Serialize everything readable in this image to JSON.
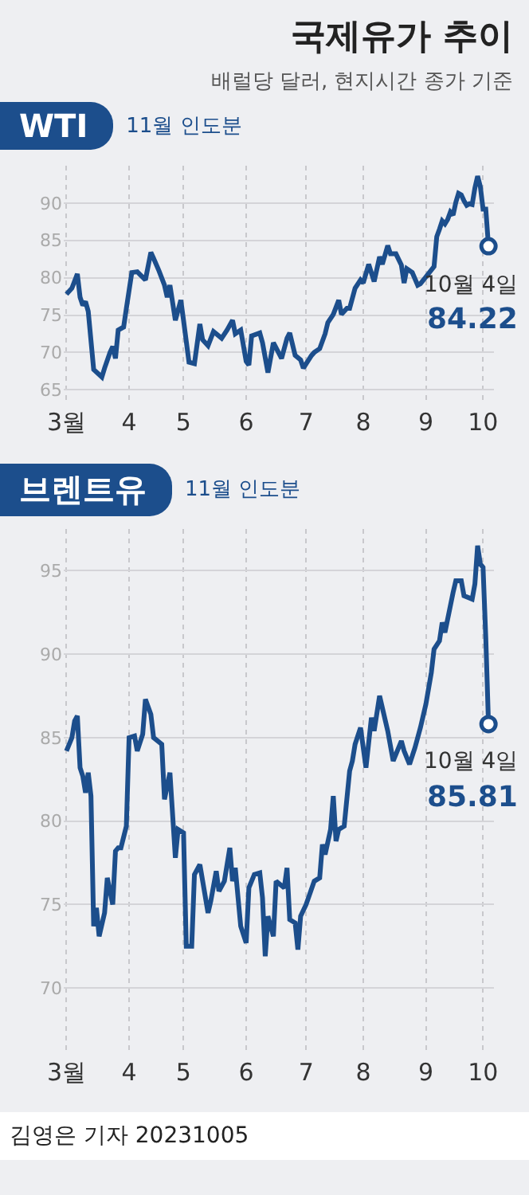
{
  "chart_data": [
    {
      "type": "line",
      "title": "국제유가 추이",
      "subtitle": "배럴당 달러, 현지시간 종가 기준",
      "x": [
        "2023-03-01",
        "2023-03-03",
        "2023-03-07",
        "2023-03-08",
        "2023-03-09",
        "2023-03-10",
        "2023-03-13",
        "2023-03-15",
        "2023-03-20",
        "2023-03-21",
        "2023-03-23",
        "2023-03-24",
        "2023-03-27",
        "2023-03-28",
        "2023-03-30",
        "2023-03-31",
        "2023-04-04",
        "2023-04-06",
        "2023-04-11",
        "2023-04-13",
        "2023-04-14",
        "2023-04-18",
        "2023-04-20",
        "2023-04-21",
        "2023-04-24",
        "2023-04-26",
        "2023-04-28",
        "2023-05-01",
        "2023-05-03",
        "2023-05-05",
        "2023-05-09",
        "2023-05-10",
        "2023-05-12",
        "2023-05-16",
        "2023-05-19",
        "2023-05-23",
        "2023-05-25",
        "2023-05-26",
        "2023-05-30",
        "2023-06-01",
        "2023-06-02",
        "2023-06-05",
        "2023-06-08",
        "2023-06-09",
        "2023-06-13",
        "2023-06-15",
        "2023-06-20",
        "2023-06-22",
        "2023-06-23",
        "2023-06-27",
        "2023-06-29",
        "2023-06-30",
        "2023-07-05",
        "2023-07-06",
        "2023-07-10",
        "2023-07-12",
        "2023-07-13",
        "2023-07-17",
        "2023-07-19",
        "2023-07-20",
        "2023-07-24",
        "2023-07-25",
        "2023-07-27",
        "2023-07-31",
        "2023-08-01",
        "2023-08-03",
        "2023-08-07",
        "2023-08-09",
        "2023-08-10",
        "2023-08-14",
        "2023-08-15",
        "2023-08-17",
        "2023-08-21",
        "2023-08-22",
        "2023-08-23",
        "2023-08-25",
        "2023-08-29",
        "2023-08-30",
        "2023-09-01",
        "2023-09-06",
        "2023-09-07",
        "2023-09-08",
        "2023-09-11",
        "2023-09-12",
        "2023-09-13",
        "2023-09-14",
        "2023-09-15",
        "2023-09-18",
        "2023-09-19",
        "2023-09-20",
        "2023-09-21",
        "2023-09-22",
        "2023-09-25",
        "2023-09-26",
        "2023-09-27",
        "2023-09-28",
        "2023-09-29",
        "2023-10-02",
        "2023-10-03",
        "2023-10-04"
      ],
      "series": [
        {
          "name": "WTI",
          "color": "#1c4e8c",
          "values": [
            77.8,
            78.6,
            80.5,
            77.4,
            76.3,
            76.8,
            75.5,
            67.7,
            66.7,
            67.9,
            70,
            70.8,
            69.2,
            73,
            73.4,
            75.9,
            80.7,
            80.8,
            79.7,
            83.4,
            82.6,
            80.9,
            79,
            77.4,
            79,
            74.3,
            77,
            74.3,
            68.7,
            68.5,
            73.8,
            71.7,
            70.9,
            72.8,
            71.9,
            73,
            74.3,
            72.5,
            73,
            68.8,
            68.3,
            72.2,
            72.6,
            71.3,
            67.3,
            71.3,
            69.2,
            71.9,
            72.6,
            69.6,
            69,
            67.9,
            69.6,
            70,
            70.5,
            72.5,
            74,
            75.1,
            77,
            75.1,
            75.9,
            75.9,
            78.6,
            79.7,
            79.3,
            81.8,
            79.5,
            82.8,
            81.8,
            84.3,
            83.2,
            83.2,
            81.7,
            79.3,
            81.2,
            80.7,
            79,
            79.2,
            80.1,
            81.5,
            85.5,
            86.5,
            87.6,
            87.2,
            87.8,
            88.8,
            88.4,
            90.1,
            91.3,
            91.1,
            90.3,
            89.7,
            89.9,
            89.8,
            92,
            93.6,
            92.2,
            89.2,
            89.2,
            84.22
          ],
          "value_labels": [
            null,
            null,
            null,
            null,
            null,
            null,
            null,
            null,
            null,
            null,
            null,
            null,
            null,
            null,
            null,
            null,
            null,
            null,
            null,
            null,
            null,
            null,
            null,
            null,
            null,
            null,
            null,
            null,
            null,
            null,
            null,
            null,
            null,
            null,
            null,
            null,
            null,
            null,
            null,
            null,
            null,
            null,
            null,
            null,
            null,
            null,
            null,
            null,
            null,
            null,
            null,
            null,
            null,
            null,
            null,
            null,
            null,
            null,
            null,
            null,
            null,
            null,
            null,
            null,
            null,
            null,
            null,
            null,
            null,
            null,
            null,
            null,
            null,
            null,
            null,
            null,
            null,
            null,
            null,
            null,
            null,
            null,
            null,
            null,
            null,
            null,
            null,
            null,
            null,
            null,
            null,
            null,
            null,
            null,
            null,
            null,
            null,
            null,
            null,
            "84.22"
          ]
        }
      ],
      "xlim": [
        "2023-02-28",
        "2023-10-06"
      ],
      "ylim": [
        63,
        95
      ],
      "xticks": [
        {
          "value": "2023-03-01",
          "label": "3월"
        },
        {
          "value": "2023-04-03",
          "label": "4"
        },
        {
          "value": "2023-05-01",
          "label": "5"
        },
        {
          "value": "2023-06-01",
          "label": "6"
        },
        {
          "value": "2023-07-03",
          "label": "7"
        },
        {
          "value": "2023-08-01",
          "label": "8"
        },
        {
          "value": "2023-09-01",
          "label": "9"
        },
        {
          "value": "2023-10-02",
          "label": "10"
        }
      ],
      "yticks": [
        65,
        70,
        75,
        80,
        85,
        90
      ],
      "grid": true,
      "annotations": [
        "11월 인도분",
        {
          "text": "10월 4일",
          "x": "2023-10-04",
          "y": 84.22
        }
      ]
    },
    {
      "type": "line",
      "x": [
        "2023-03-01",
        "2023-03-03",
        "2023-03-06",
        "2023-03-07",
        "2023-03-08",
        "2023-03-09",
        "2023-03-10",
        "2023-03-13",
        "2023-03-14",
        "2023-03-15",
        "2023-03-16",
        "2023-03-17",
        "2023-03-21",
        "2023-03-22",
        "2023-03-24",
        "2023-03-27",
        "2023-03-28",
        "2023-03-29",
        "2023-03-31",
        "2023-04-03",
        "2023-04-05",
        "2023-04-06",
        "2023-04-10",
        "2023-04-11",
        "2023-04-13",
        "2023-04-14",
        "2023-04-19",
        "2023-04-20",
        "2023-04-24",
        "2023-04-26",
        "2023-04-27",
        "2023-05-01",
        "2023-05-02",
        "2023-05-04",
        "2023-05-05",
        "2023-05-09",
        "2023-05-12",
        "2023-05-15",
        "2023-05-17",
        "2023-05-18",
        "2023-05-22",
        "2023-05-24",
        "2023-05-25",
        "2023-05-26",
        "2023-05-30",
        "2023-06-01",
        "2023-06-02",
        "2023-06-06",
        "2023-06-08",
        "2023-06-09",
        "2023-06-12",
        "2023-06-13",
        "2023-06-15",
        "2023-06-16",
        "2023-06-21",
        "2023-06-22",
        "2023-06-23",
        "2023-06-27",
        "2023-06-28",
        "2023-06-29",
        "2023-07-03",
        "2023-07-06",
        "2023-07-10",
        "2023-07-11",
        "2023-07-12",
        "2023-07-14",
        "2023-07-17",
        "2023-07-18",
        "2023-07-19",
        "2023-07-21",
        "2023-07-25",
        "2023-07-26",
        "2023-07-27",
        "2023-07-31",
        "2023-08-02",
        "2023-08-04",
        "2023-08-07",
        "2023-08-09",
        "2023-08-10",
        "2023-08-14",
        "2023-08-16",
        "2023-08-21",
        "2023-08-22",
        "2023-08-24",
        "2023-08-28",
        "2023-08-30",
        "2023-09-01",
        "2023-09-05",
        "2023-09-06",
        "2023-09-08",
        "2023-09-11",
        "2023-09-12",
        "2023-09-13",
        "2023-09-15",
        "2023-09-18",
        "2023-09-20",
        "2023-09-21",
        "2023-09-26",
        "2023-09-27",
        "2023-09-28",
        "2023-09-29",
        "2023-10-02",
        "2023-10-03",
        "2023-10-04"
      ],
      "series": [
        {
          "name": "브렌트유",
          "color": "#1c4e8c",
          "values": [
            84.2,
            85,
            86,
            86.3,
            83.2,
            82.7,
            81.7,
            82.9,
            81.5,
            73.7,
            74.8,
            73.1,
            74.5,
            76.6,
            75,
            78.2,
            78.4,
            78.4,
            79.7,
            85,
            85.1,
            84.2,
            85.2,
            87.3,
            86.4,
            85,
            84.6,
            81.3,
            82.9,
            77.8,
            79.5,
            79.3,
            72.5,
            72.5,
            76.8,
            77.4,
            74.5,
            75.2,
            77,
            75.8,
            76.4,
            78.4,
            76.4,
            77.2,
            73.7,
            72.7,
            76,
            76.8,
            76.9,
            75.4,
            71.9,
            74.3,
            73.1,
            76.4,
            76,
            77.2,
            74.1,
            73.9,
            72.3,
            74.3,
            75,
            76.4,
            76.6,
            78.6,
            78,
            79.5,
            81.5,
            78.8,
            79.5,
            79.7,
            83,
            83.6,
            84.6,
            85.6,
            83.2,
            86.2,
            85.4,
            87.5,
            86.8,
            85.4,
            83.6,
            84.8,
            84.2,
            83.4,
            84.4,
            85.6,
            87,
            88.9,
            90.3,
            90.8,
            91.9,
            91.3,
            92.1,
            93.7,
            94.4,
            94.4,
            93.5,
            93.3,
            94.2,
            96.5,
            95.4,
            95.2,
            91,
            85.81
          ],
          "value_labels": [
            null,
            null,
            null,
            null,
            null,
            null,
            null,
            null,
            null,
            null,
            null,
            null,
            null,
            null,
            null,
            null,
            null,
            null,
            null,
            null,
            null,
            null,
            null,
            null,
            null,
            null,
            null,
            null,
            null,
            null,
            null,
            null,
            null,
            null,
            null,
            null,
            null,
            null,
            null,
            null,
            null,
            null,
            null,
            null,
            null,
            null,
            null,
            null,
            null,
            null,
            null,
            null,
            null,
            null,
            null,
            null,
            null,
            null,
            null,
            null,
            null,
            null,
            null,
            null,
            null,
            null,
            null,
            null,
            null,
            null,
            null,
            null,
            null,
            null,
            null,
            null,
            null,
            null,
            null,
            null,
            null,
            null,
            null,
            null,
            null,
            null,
            null,
            null,
            null,
            null,
            null,
            null,
            null,
            null,
            null,
            null,
            null,
            null,
            null,
            null,
            null,
            null,
            null,
            "85.81"
          ]
        }
      ],
      "xlim": [
        "2023-02-28",
        "2023-10-06"
      ],
      "ylim": [
        66,
        97.5
      ],
      "xticks": [
        {
          "value": "2023-03-01",
          "label": "3월"
        },
        {
          "value": "2023-04-03",
          "label": "4"
        },
        {
          "value": "2023-05-01",
          "label": "5"
        },
        {
          "value": "2023-06-01",
          "label": "6"
        },
        {
          "value": "2023-07-03",
          "label": "7"
        },
        {
          "value": "2023-08-01",
          "label": "8"
        },
        {
          "value": "2023-09-01",
          "label": "9"
        },
        {
          "value": "2023-10-02",
          "label": "10"
        }
      ],
      "yticks": [
        70,
        75,
        80,
        85,
        90,
        95
      ],
      "grid": true,
      "annotations": [
        "11월 인도분",
        {
          "text": "10월 4일",
          "x": "2023-10-04",
          "y": 85.81
        },
        "김영은 기자 20231005"
      ]
    }
  ]
}
